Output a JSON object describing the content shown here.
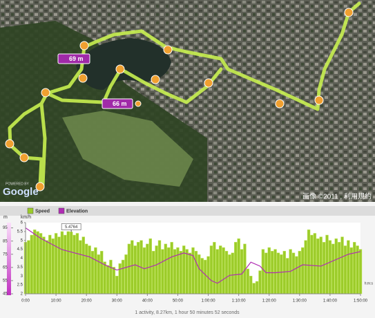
{
  "map": {
    "pins": [
      "69 m",
      "66 m"
    ],
    "copyright": "画像 ©2011 , 利用規約",
    "logo_small": "POWERED BY",
    "logo": "Google"
  },
  "chart_data": {
    "type": "bar-line",
    "legend": [
      "Speed",
      "Elevation"
    ],
    "ylabel": "km/h",
    "y2label": "m",
    "xlabel": "h:m:s",
    "footer": "1 activity, 8.27km, 1 hour 50 minutes 52 seconds",
    "tooltip": {
      "x": 15,
      "value": 5.4764
    },
    "x": [
      0,
      1,
      2,
      3,
      4,
      5,
      6,
      7,
      8,
      9,
      10,
      11,
      12,
      13,
      14,
      15,
      16,
      17,
      18,
      19,
      20,
      21,
      22,
      23,
      24,
      25,
      26,
      27,
      28,
      29,
      30,
      31,
      32,
      33,
      34,
      35,
      36,
      37,
      38,
      39,
      40,
      41,
      42,
      43,
      44,
      45,
      46,
      47,
      48,
      49,
      50,
      51,
      52,
      53,
      54,
      55,
      56,
      57,
      58,
      59,
      60,
      61,
      62,
      63,
      64,
      65,
      66,
      67,
      68,
      69,
      70,
      71,
      72,
      73,
      74,
      75,
      76,
      77,
      78,
      79,
      80,
      81,
      82,
      83,
      84,
      85,
      86,
      87,
      88,
      89,
      90,
      91,
      92,
      93,
      94,
      95,
      96,
      97,
      98,
      99,
      100,
      101,
      102,
      103,
      104,
      105,
      106,
      107,
      108,
      109,
      110
    ],
    "series": [
      {
        "name": "Speed",
        "color": "#9ccc2a",
        "values": [
          4.9,
          5.0,
          5.3,
          5.6,
          5.5,
          5.4,
          5.2,
          5.0,
          5.3,
          5.1,
          5.4,
          5.2,
          5.5,
          5.3,
          5.5,
          5.48,
          5.3,
          5.4,
          5.0,
          5.2,
          4.8,
          4.7,
          4.4,
          4.6,
          4.2,
          4.4,
          3.8,
          3.6,
          3.9,
          3.5,
          3.0,
          3.7,
          3.9,
          4.2,
          4.8,
          5.0,
          4.7,
          4.9,
          5.0,
          4.6,
          4.8,
          5.1,
          4.4,
          4.7,
          5.0,
          4.5,
          4.8,
          4.6,
          4.9,
          4.5,
          4.6,
          4.4,
          4.7,
          4.5,
          4.3,
          4.6,
          4.4,
          4.2,
          4.0,
          3.9,
          4.1,
          4.7,
          4.9,
          4.5,
          4.7,
          4.6,
          4.4,
          4.2,
          4.3,
          4.9,
          5.1,
          4.5,
          4.8,
          3.4,
          3.0,
          2.6,
          2.7,
          3.3,
          4.5,
          4.3,
          4.6,
          4.4,
          4.5,
          4.3,
          4.2,
          4.4,
          4.0,
          4.5,
          4.3,
          4.1,
          4.4,
          4.6,
          5.0,
          5.6,
          5.3,
          5.4,
          5.1,
          5.2,
          4.9,
          5.3,
          5.0,
          4.8,
          5.1,
          4.9,
          5.2,
          4.7,
          5.0,
          4.6,
          4.9,
          4.7,
          4.5
        ]
      },
      {
        "name": "Elevation",
        "color": "#b02cb4",
        "axis": "y2",
        "x": [
          0,
          5,
          12,
          21,
          26,
          30,
          33,
          36,
          39,
          43,
          48,
          52,
          55,
          57,
          61,
          63,
          67,
          71,
          74,
          77,
          79,
          82,
          87,
          91,
          97,
          103,
          106,
          110
        ],
        "values": [
          95,
          87,
          78.5,
          73,
          67,
          63,
          65,
          67,
          64,
          67,
          73,
          76,
          74,
          64,
          55,
          53,
          59,
          60,
          69,
          66,
          61,
          61,
          62,
          67,
          66,
          72,
          75,
          77
        ]
      }
    ],
    "xlim": [
      0,
      110
    ],
    "xticks": [
      {
        "value": 0,
        "label": "0:00"
      },
      {
        "value": 10,
        "label": "10:00"
      },
      {
        "value": 20,
        "label": "20:00"
      },
      {
        "value": 30,
        "label": "30:00"
      },
      {
        "value": 40,
        "label": "40:00"
      },
      {
        "value": 50,
        "label": "50:00"
      },
      {
        "value": 60,
        "label": "1:00:00"
      },
      {
        "value": 70,
        "label": "1:10:00"
      },
      {
        "value": 80,
        "label": "1:20:00"
      },
      {
        "value": 90,
        "label": "1:30:00"
      },
      {
        "value": 100,
        "label": "1:40:00"
      },
      {
        "value": 110,
        "label": "1:50:00"
      }
    ],
    "ylim": [
      2,
      6
    ],
    "yticks": [
      2,
      2.5,
      3,
      3.5,
      4,
      4.5,
      5,
      5.5,
      6
    ],
    "y2lim": [
      45,
      99
    ],
    "y2ticks": [
      45,
      55,
      65,
      75,
      85,
      95
    ]
  }
}
